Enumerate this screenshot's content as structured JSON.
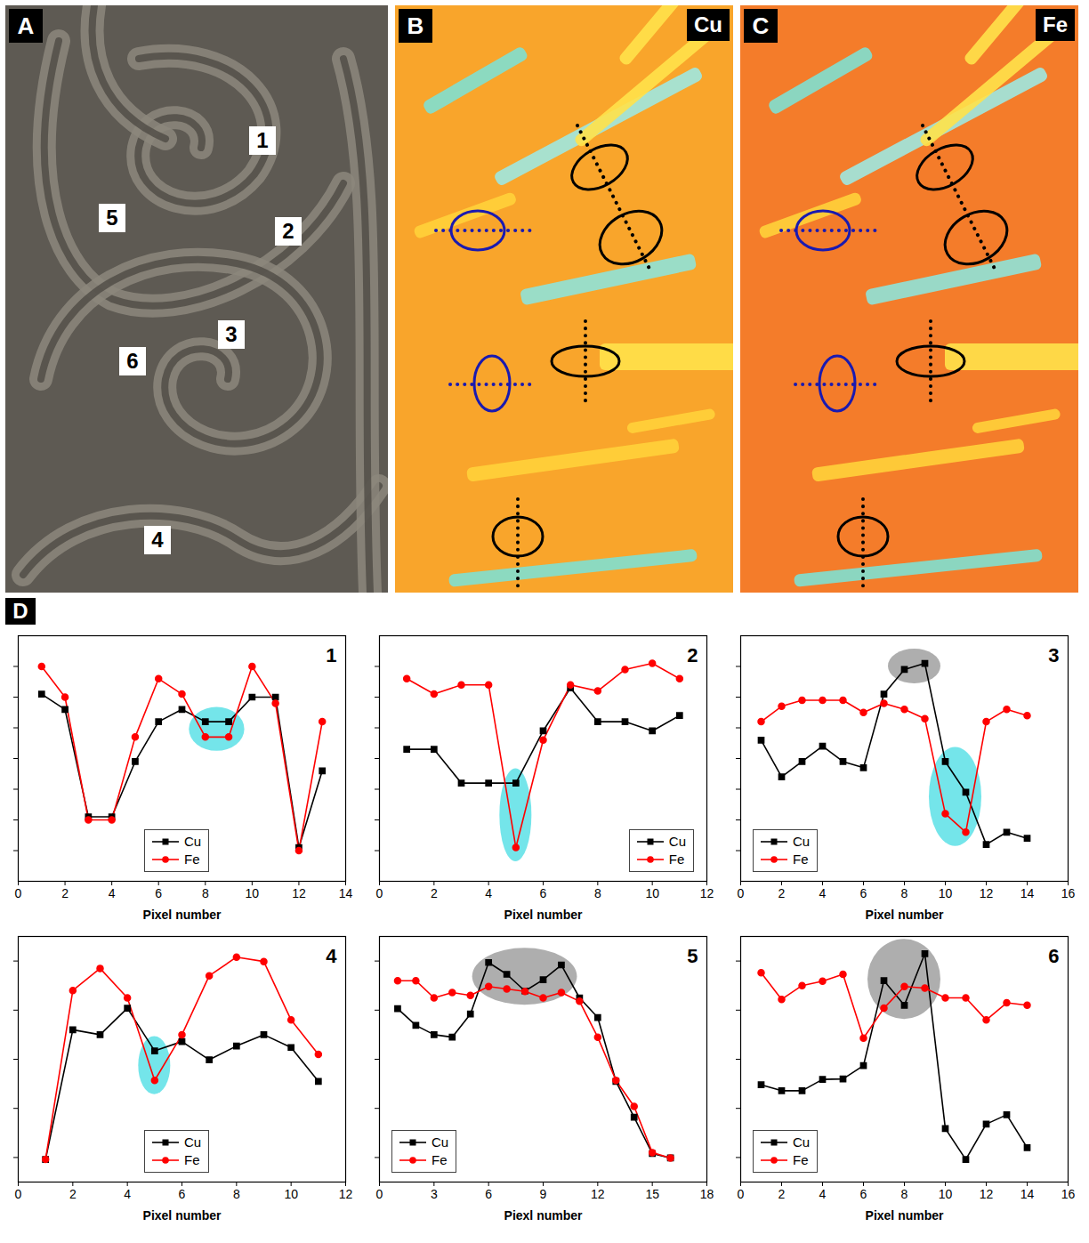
{
  "panels": {
    "A": {
      "letter": "A",
      "labels": [
        "1",
        "2",
        "3",
        "4",
        "5",
        "6"
      ]
    },
    "B": {
      "letter": "B",
      "element": "Cu"
    },
    "C": {
      "letter": "C",
      "element": "Fe"
    },
    "D": {
      "letter": "D"
    }
  },
  "chart_data": [
    {
      "type": "line",
      "title": "1",
      "x_label": "Pixel number",
      "xlim": [
        0,
        14
      ],
      "xticks": [
        0,
        2,
        4,
        6,
        8,
        10,
        12,
        14
      ],
      "ylim": [
        0,
        8
      ],
      "yticks": [
        1,
        2,
        3,
        4,
        5,
        6,
        7
      ],
      "tick_labels": "x",
      "legend": "bottom",
      "x": [
        1,
        2,
        3,
        4,
        5,
        6,
        7,
        8,
        9,
        10,
        11,
        12,
        13
      ],
      "series": [
        {
          "name": "Cu",
          "color": "#000000",
          "marker": "square",
          "values": [
            6.1,
            5.6,
            2.1,
            2.1,
            3.9,
            5.2,
            5.6,
            5.2,
            5.2,
            6.0,
            6.0,
            1.1,
            3.6
          ]
        },
        {
          "name": "Fe",
          "color": "#ff0000",
          "marker": "circle",
          "values": [
            7.0,
            6.0,
            2.0,
            2.0,
            4.7,
            6.6,
            6.1,
            4.7,
            4.7,
            7.0,
            5.8,
            1.0,
            5.2
          ]
        }
      ],
      "highlights": [
        {
          "x": [
            8,
            9
          ],
          "series": [
            "Cu",
            "Fe"
          ],
          "color": "#5ce1e6"
        }
      ]
    },
    {
      "type": "line",
      "title": "2",
      "x_label": "Pixel number",
      "xlim": [
        0,
        12
      ],
      "xticks": [
        0,
        2,
        4,
        6,
        8,
        10,
        12
      ],
      "ylim": [
        0,
        8
      ],
      "yticks": [
        1,
        2,
        3,
        4,
        5,
        6,
        7
      ],
      "tick_labels": "x",
      "legend": "bottom-right",
      "x": [
        1,
        2,
        3,
        4,
        5,
        6,
        7,
        8,
        9,
        10,
        11
      ],
      "series": [
        {
          "name": "Cu",
          "color": "#000000",
          "marker": "square",
          "values": [
            4.3,
            4.3,
            3.2,
            3.2,
            3.2,
            4.9,
            6.3,
            5.2,
            5.2,
            4.9,
            5.4
          ]
        },
        {
          "name": "Fe",
          "color": "#ff0000",
          "marker": "circle",
          "values": [
            6.6,
            6.1,
            6.4,
            6.4,
            1.1,
            4.6,
            6.4,
            6.2,
            6.9,
            7.1,
            6.6
          ]
        }
      ],
      "highlights": [
        {
          "x": [
            5,
            5
          ],
          "series": [
            "Cu",
            "Fe"
          ],
          "color": "#5ce1e6"
        }
      ]
    },
    {
      "type": "line",
      "title": "3",
      "x_label": "Pixel number",
      "xlim": [
        0,
        16
      ],
      "xticks": [
        0,
        2,
        4,
        6,
        8,
        10,
        12,
        14,
        16
      ],
      "ylim": [
        0,
        8
      ],
      "yticks": [
        1,
        2,
        3,
        4,
        5,
        6,
        7
      ],
      "tick_labels": "x",
      "legend": "bottom-left",
      "x": [
        1,
        2,
        3,
        4,
        5,
        6,
        7,
        8,
        9,
        10,
        11,
        12,
        13,
        14
      ],
      "series": [
        {
          "name": "Cu",
          "color": "#000000",
          "marker": "square",
          "values": [
            4.6,
            3.4,
            3.9,
            4.4,
            3.9,
            3.7,
            6.1,
            6.9,
            7.1,
            3.9,
            2.9,
            1.2,
            1.6,
            1.4
          ]
        },
        {
          "name": "Fe",
          "color": "#ff0000",
          "marker": "circle",
          "values": [
            5.2,
            5.7,
            5.9,
            5.9,
            5.9,
            5.5,
            5.8,
            5.6,
            5.3,
            2.2,
            1.6,
            5.2,
            5.6,
            5.4
          ]
        }
      ],
      "highlights": [
        {
          "x": [
            8,
            9
          ],
          "series": [
            "Cu"
          ],
          "color": "#a0a0a0"
        },
        {
          "x": [
            10,
            11
          ],
          "series": [
            "Cu",
            "Fe"
          ],
          "color": "#5ce1e6"
        }
      ]
    },
    {
      "type": "line",
      "title": "4",
      "x_label": "Pixel number",
      "xlim": [
        0,
        12
      ],
      "xticks": [
        0,
        2,
        4,
        6,
        8,
        10,
        12
      ],
      "ylim": [
        0,
        5
      ],
      "yticks": [
        0.5,
        1.5,
        2.5,
        3.5,
        4.5
      ],
      "tick_labels": "x",
      "legend": "bottom",
      "x": [
        1,
        2,
        3,
        4,
        5,
        6,
        7,
        8,
        9,
        10,
        11
      ],
      "series": [
        {
          "name": "Cu",
          "color": "#000000",
          "marker": "square",
          "values": [
            0.46,
            3.1,
            3.0,
            3.54,
            2.67,
            2.86,
            2.49,
            2.77,
            3.0,
            2.74,
            2.05
          ]
        },
        {
          "name": "Fe",
          "color": "#ff0000",
          "marker": "circle",
          "values": [
            0.46,
            3.9,
            4.35,
            3.75,
            2.07,
            3.0,
            4.2,
            4.58,
            4.49,
            3.3,
            2.6
          ]
        }
      ],
      "highlights": [
        {
          "x": [
            5,
            5
          ],
          "series": [
            "Cu",
            "Fe"
          ],
          "color": "#5ce1e6"
        }
      ]
    },
    {
      "type": "line",
      "title": "5",
      "x_label": "Piexl number",
      "xlim": [
        0,
        18
      ],
      "xticks": [
        0,
        3,
        6,
        9,
        12,
        15,
        18
      ],
      "ylim": [
        0,
        5
      ],
      "yticks": [
        0.5,
        1.5,
        2.5,
        3.5,
        4.5
      ],
      "tick_labels": "x",
      "legend": "bottom-left",
      "x": [
        1,
        2,
        3,
        4,
        5,
        6,
        7,
        8,
        9,
        10,
        11,
        12,
        13,
        14,
        15,
        16
      ],
      "series": [
        {
          "name": "Cu",
          "color": "#000000",
          "marker": "square",
          "values": [
            3.53,
            3.19,
            3.0,
            2.95,
            3.42,
            4.47,
            4.23,
            3.89,
            4.12,
            4.42,
            3.75,
            3.35,
            2.05,
            1.32,
            0.58,
            0.49
          ]
        },
        {
          "name": "Fe",
          "color": "#ff0000",
          "marker": "circle",
          "values": [
            4.1,
            4.1,
            3.75,
            3.86,
            3.8,
            3.98,
            3.93,
            3.88,
            3.75,
            3.86,
            3.68,
            2.95,
            2.07,
            1.54,
            0.6,
            0.49
          ]
        }
      ],
      "highlights": [
        {
          "x": [
            6,
            10
          ],
          "series": [
            "Cu"
          ],
          "color": "#a0a0a0"
        }
      ]
    },
    {
      "type": "line",
      "title": "6",
      "x_label": "Pixel number",
      "xlim": [
        0,
        16
      ],
      "xticks": [
        0,
        2,
        4,
        6,
        8,
        10,
        12,
        14,
        16
      ],
      "ylim": [
        0,
        5
      ],
      "yticks": [
        0.5,
        1.5,
        2.5,
        3.5,
        4.5
      ],
      "tick_labels": "x",
      "legend": "bottom-left",
      "x": [
        1,
        2,
        3,
        4,
        5,
        6,
        7,
        8,
        9,
        10,
        11,
        12,
        13,
        14
      ],
      "series": [
        {
          "name": "Cu",
          "color": "#000000",
          "marker": "square",
          "values": [
            1.98,
            1.86,
            1.86,
            2.09,
            2.1,
            2.37,
            4.1,
            3.6,
            4.65,
            1.09,
            0.46,
            1.18,
            1.37,
            0.7
          ]
        },
        {
          "name": "Fe",
          "color": "#ff0000",
          "marker": "circle",
          "values": [
            4.26,
            3.72,
            4.0,
            4.09,
            4.23,
            2.93,
            3.54,
            3.98,
            3.95,
            3.75,
            3.75,
            3.3,
            3.65,
            3.6
          ]
        }
      ],
      "highlights": [
        {
          "x": [
            7,
            9
          ],
          "series": [
            "Cu"
          ],
          "color": "#a0a0a0"
        }
      ]
    }
  ]
}
